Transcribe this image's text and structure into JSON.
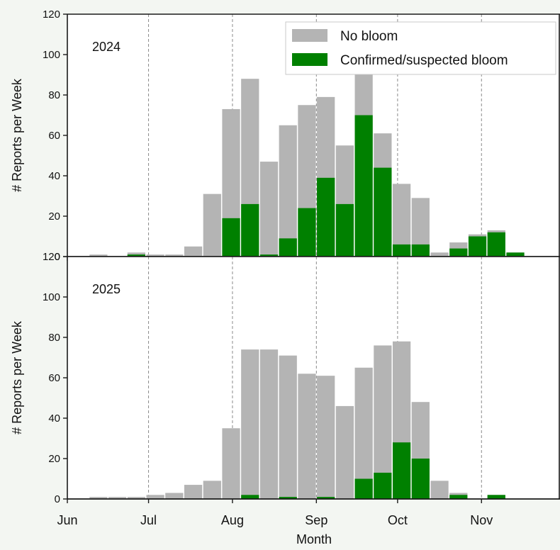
{
  "chart_data": {
    "type": "bar",
    "stacked": "overlay",
    "xlabel": "Month",
    "ylabel": "# Reports per Week",
    "ylim": [
      0,
      120
    ],
    "yticks": [
      0,
      20,
      40,
      60,
      80,
      100,
      120
    ],
    "x_ticks": [
      "Jun",
      "Jul",
      "Aug",
      "Sep",
      "Oct",
      "Nov"
    ],
    "x_start_date": "2025-06-01",
    "x_end_date": "2025-11-30",
    "vertical_gridlines_at": [
      "Jul",
      "Aug",
      "Sep",
      "Oct",
      "Nov"
    ],
    "week_starts": [
      "Jun 9",
      "Jun 16",
      "Jun 23",
      "Jun 30",
      "Jul 7",
      "Jul 14",
      "Jul 21",
      "Jul 28",
      "Aug 4",
      "Aug 11",
      "Aug 18",
      "Aug 25",
      "Sep 1",
      "Sep 8",
      "Sep 15",
      "Sep 22",
      "Sep 29",
      "Oct 6",
      "Oct 13",
      "Oct 20",
      "Oct 27",
      "Nov 3",
      "Nov 10"
    ],
    "legend": {
      "placement": "top-right",
      "entries": [
        {
          "label": "No bloom",
          "color": "#b4b4b4"
        },
        {
          "label": "Confirmed/suspected bloom",
          "color": "#008000"
        }
      ]
    },
    "panels": [
      {
        "year_label": "2024",
        "series": [
          {
            "name": "No bloom",
            "values": [
              1,
              0,
              2,
              1,
              1,
              5,
              31,
              73,
              88,
              47,
              65,
              75,
              79,
              55,
              95,
              61,
              36,
              29,
              2,
              7,
              11,
              13,
              2
            ]
          },
          {
            "name": "Confirmed/suspected bloom",
            "values": [
              0,
              0,
              1,
              0,
              0,
              0,
              0,
              19,
              26,
              1,
              9,
              24,
              39,
              26,
              70,
              44,
              6,
              6,
              0,
              4,
              10,
              12,
              2
            ]
          }
        ]
      },
      {
        "year_label": "2025",
        "series": [
          {
            "name": "No bloom",
            "values": [
              1,
              1,
              1,
              2,
              3,
              7,
              9,
              35,
              74,
              74,
              71,
              62,
              61,
              46,
              65,
              76,
              78,
              48,
              9,
              3,
              0,
              2,
              0
            ]
          },
          {
            "name": "Confirmed/suspected bloom",
            "values": [
              0,
              0,
              0,
              0,
              0,
              0,
              0,
              0,
              2,
              0,
              1,
              0,
              1,
              0,
              10,
              13,
              28,
              20,
              0,
              2,
              0,
              2,
              0
            ]
          }
        ]
      }
    ]
  },
  "colors": {
    "no_bloom": "#b4b4b4",
    "bloom": "#008000",
    "axis": "#1a1a1a",
    "grid": "#8a8a8a",
    "plot_background": "#ffffff"
  }
}
